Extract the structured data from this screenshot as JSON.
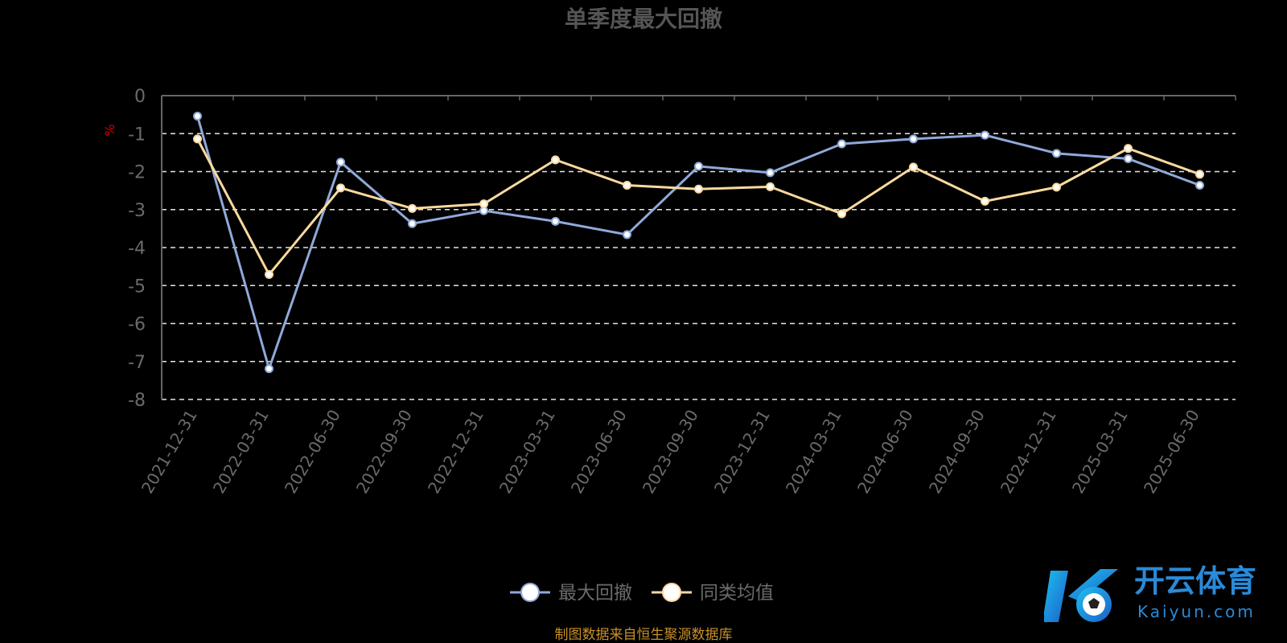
{
  "chart_data": {
    "type": "line",
    "title": "单季度最大回撤",
    "ylabel": "%",
    "xlabel": "",
    "ylim": [
      -8,
      0
    ],
    "yticks": [
      0,
      -1,
      -2,
      -3,
      -4,
      -5,
      -6,
      -7,
      -8
    ],
    "grid": true,
    "legend_position": "bottom",
    "categories": [
      "2021-12-31",
      "2022-03-31",
      "2022-06-30",
      "2022-09-30",
      "2022-12-31",
      "2023-03-31",
      "2023-06-30",
      "2023-09-30",
      "2023-12-31",
      "2024-03-31",
      "2024-06-30",
      "2024-09-30",
      "2024-12-31",
      "2025-03-31",
      "2025-06-30"
    ],
    "series": [
      {
        "name": "最大回撤",
        "color": "#8fa9d9",
        "values": [
          -0.54,
          -7.19,
          -1.75,
          -3.37,
          -3.03,
          -3.31,
          -3.66,
          -1.86,
          -2.03,
          -1.27,
          -1.14,
          -1.04,
          -1.52,
          -1.66,
          -2.36
        ]
      },
      {
        "name": "同类均值",
        "color": "#fbd99e",
        "values": [
          -1.14,
          -4.71,
          -2.43,
          -2.97,
          -2.85,
          -1.69,
          -2.36,
          -2.46,
          -2.4,
          -3.11,
          -1.88,
          -2.78,
          -2.41,
          -1.39,
          -2.07
        ]
      }
    ]
  },
  "source": "制图数据来自恒生聚源数据库",
  "watermark": {
    "cn": "开云体育",
    "en": "Kaiyun.com"
  }
}
